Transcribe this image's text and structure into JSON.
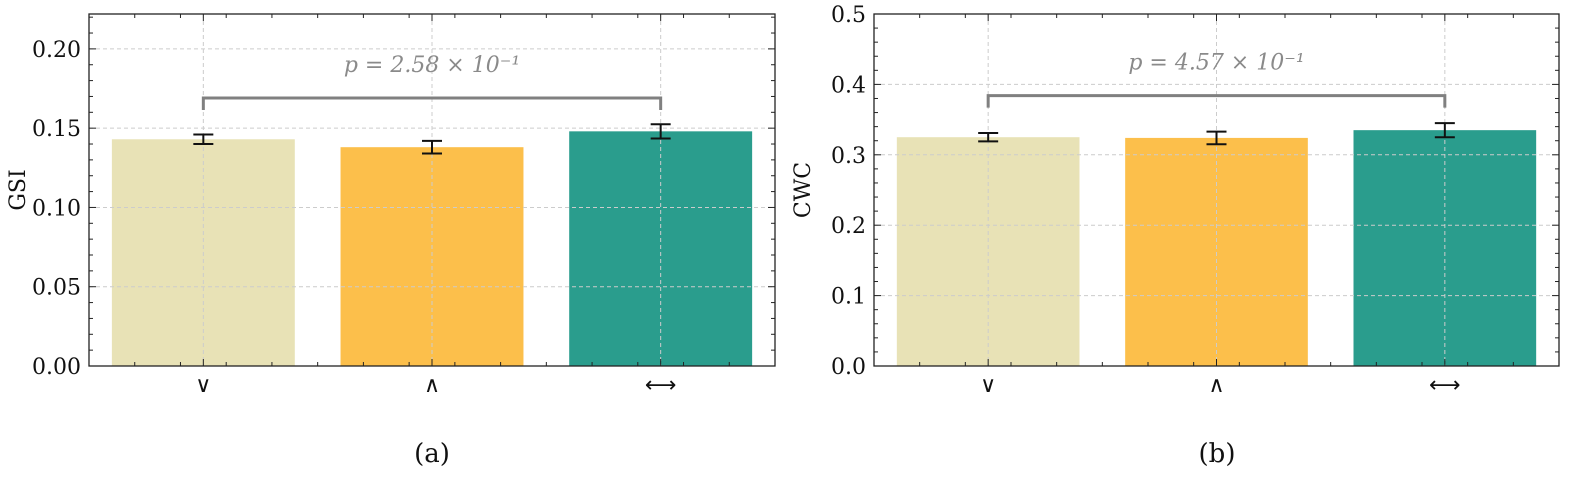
{
  "colors": {
    "vee": "#e8e2b6",
    "wedge": "#fcbf4b",
    "harrow": "#2a9d8d",
    "bracket": "#808080",
    "grid": "#cccccc"
  },
  "chart_data": [
    {
      "type": "bar",
      "panel_label": "(a)",
      "categories": [
        "∨",
        "∧",
        "⟷"
      ],
      "values": [
        0.143,
        0.138,
        0.148
      ],
      "errors": [
        0.003,
        0.004,
        0.0045
      ],
      "ylabel": "GSI",
      "xlabel": "",
      "ylim": [
        0,
        0.222
      ],
      "yticks": [
        0.0,
        0.05,
        0.1,
        0.15,
        0.2
      ],
      "ytick_labels": [
        "0.00",
        "0.05",
        "0.10",
        "0.15",
        "0.20"
      ],
      "annotation": {
        "text": "p = 2.58 × 10⁻¹",
        "from": 0,
        "to": 2,
        "level": 0.169
      },
      "grid": true
    },
    {
      "type": "bar",
      "panel_label": "(b)",
      "categories": [
        "∨",
        "∧",
        "⟷"
      ],
      "values": [
        0.325,
        0.324,
        0.335
      ],
      "errors": [
        0.006,
        0.009,
        0.01
      ],
      "ylabel": "CWC",
      "xlabel": "",
      "ylim": [
        0,
        0.5
      ],
      "yticks": [
        0.0,
        0.1,
        0.2,
        0.3,
        0.4,
        0.5
      ],
      "ytick_labels": [
        "0.0",
        "0.1",
        "0.2",
        "0.3",
        "0.4",
        "0.5"
      ],
      "annotation": {
        "text": "p = 4.57 × 10⁻¹",
        "from": 0,
        "to": 2,
        "level": 0.384
      },
      "grid": true
    }
  ]
}
